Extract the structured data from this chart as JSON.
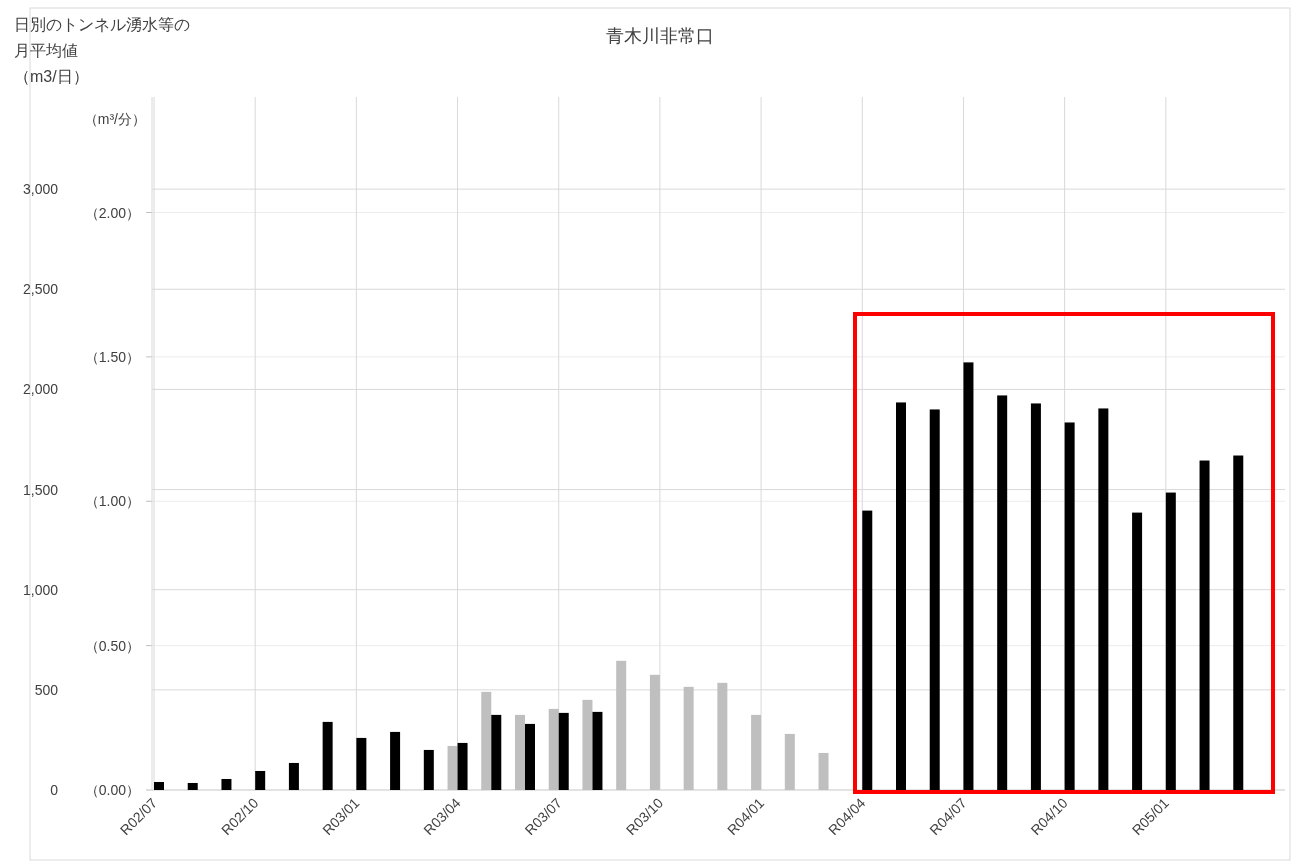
{
  "chart_data": {
    "type": "bar",
    "title": "青木川非常口",
    "annotations": [
      "日別のトンネル湧水等の月平均値",
      "（m3/日）"
    ],
    "y2label": "（m³/分）",
    "categories": [
      "R02/07",
      null,
      null,
      "R02/10",
      null,
      null,
      "R03/01",
      null,
      null,
      "R03/04",
      null,
      null,
      "R03/07",
      null,
      null,
      "R03/10",
      null,
      null,
      "R04/01",
      null,
      null,
      "R04/04",
      null,
      null,
      "R04/07",
      null,
      null,
      "R04/10",
      null,
      null,
      "R05/01",
      null,
      null
    ],
    "series": [
      {
        "color": "#bfbfbf",
        "values": [
          null,
          null,
          null,
          null,
          null,
          null,
          null,
          null,
          null,
          220,
          490,
          375,
          405,
          450,
          645,
          575,
          515,
          535,
          375,
          280,
          185,
          null,
          null,
          null,
          null,
          null,
          null,
          null,
          null,
          null,
          null,
          null,
          null
        ]
      },
      {
        "color": "#000000",
        "values": [
          40,
          35,
          55,
          95,
          135,
          340,
          260,
          290,
          200,
          235,
          375,
          330,
          385,
          390,
          null,
          null,
          null,
          null,
          null,
          null,
          null,
          1395,
          1935,
          1900,
          2135,
          1970,
          1930,
          1835,
          1905,
          1385,
          1485,
          1645,
          1670
        ]
      }
    ],
    "ylim": [
      0,
      3460
    ],
    "yticks": [
      {
        "value": 0,
        "label": "0"
      },
      {
        "value": 500,
        "label": "500"
      },
      {
        "value": 1000,
        "label": "1,000"
      },
      {
        "value": 1500,
        "label": "1,500"
      },
      {
        "value": 2000,
        "label": "2,000"
      },
      {
        "value": 2500,
        "label": "2,500"
      },
      {
        "value": 3000,
        "label": "3,000"
      }
    ],
    "y2lim": [
      0,
      2.4
    ],
    "y2ticks": [
      {
        "value": 0,
        "label": "（0.00）"
      },
      {
        "value": 0.5,
        "label": "（0.50）"
      },
      {
        "value": 1,
        "label": "（1.00）"
      },
      {
        "value": 1.5,
        "label": "（1.50）"
      },
      {
        "value": 2,
        "label": "（2.00）"
      }
    ],
    "grid": true
  }
}
